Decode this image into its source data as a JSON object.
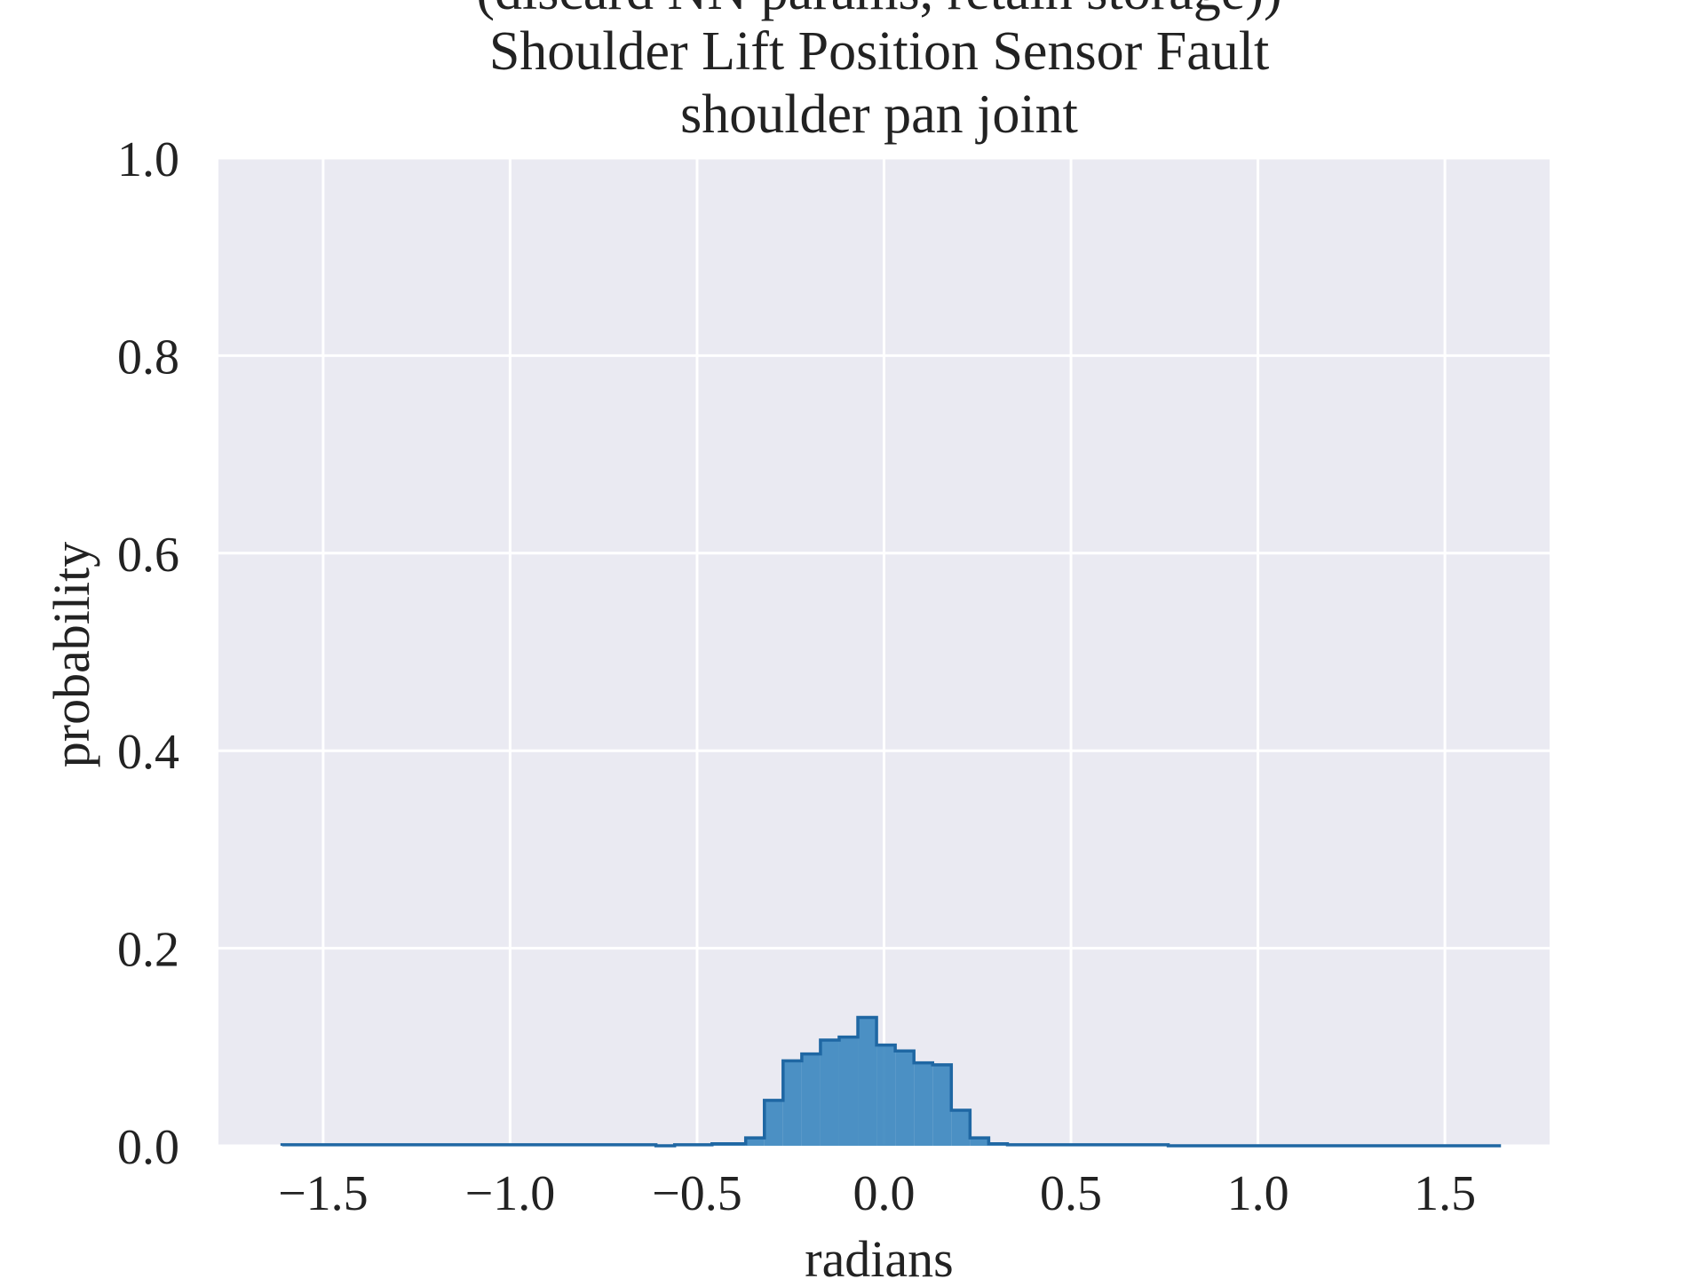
{
  "chart_data": {
    "type": "histogram",
    "title_lines": [
      "(discard NN params, retain storage))",
      "Shoulder Lift Position Sensor Fault",
      "shoulder pan joint"
    ],
    "xlabel": "radians",
    "ylabel": "probability",
    "xlim": [
      -1.78,
      1.78
    ],
    "ylim": [
      0.0,
      1.0
    ],
    "xticks": [
      -1.5,
      -1.0,
      -0.5,
      0.0,
      0.5,
      1.0,
      1.5
    ],
    "xtick_labels": [
      "−1.5",
      "−1.0",
      "−0.5",
      "0.0",
      "0.5",
      "1.0",
      "1.5"
    ],
    "yticks": [
      0.0,
      0.2,
      0.4,
      0.6,
      0.8,
      1.0
    ],
    "ytick_labels": [
      "0.0",
      "0.2",
      "0.4",
      "0.6",
      "0.8",
      "1.0"
    ],
    "grid": true,
    "bin_edges": [
      -1.61,
      -0.61,
      -0.56,
      -0.46,
      -0.37,
      -0.32,
      -0.27,
      -0.22,
      -0.17,
      -0.12,
      -0.07,
      -0.02,
      0.03,
      0.08,
      0.13,
      0.18,
      0.23,
      0.28,
      0.33,
      0.38,
      0.43,
      0.76,
      1.65
    ],
    "values": [
      0.001,
      0.0,
      0.001,
      0.002,
      0.008,
      0.046,
      0.086,
      0.093,
      0.107,
      0.11,
      0.13,
      0.102,
      0.096,
      0.084,
      0.082,
      0.036,
      0.008,
      0.002,
      0.001,
      0.001,
      0.001,
      0.0
    ],
    "colors": {
      "fill": "#3a86bf",
      "edge": "#1f67a3",
      "plot_background": "#eaeaf2",
      "grid": "#ffffff"
    }
  }
}
